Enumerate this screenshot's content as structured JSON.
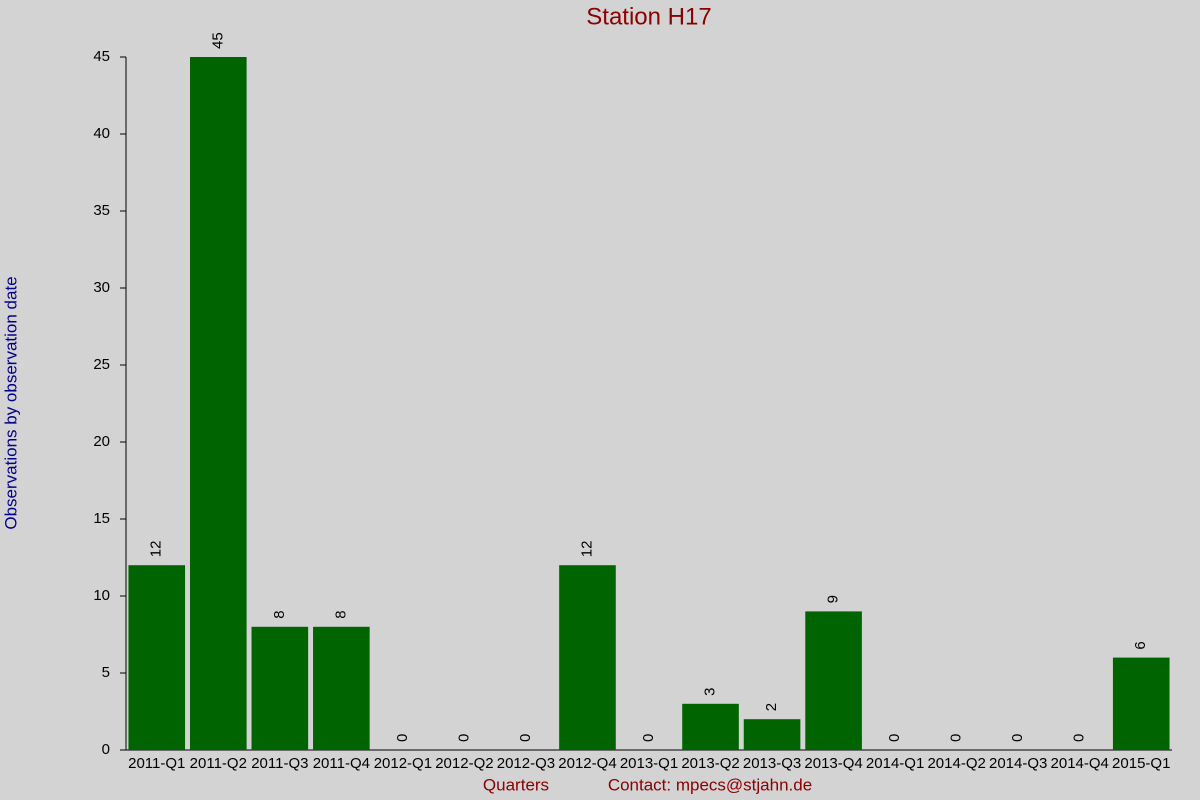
{
  "chart_data": {
    "type": "bar",
    "title": "Station H17",
    "x_label": "Quarters",
    "note": "Contact: mpecs@stjahn.de",
    "y_label": "Observations by observation date",
    "categories": [
      "2011-Q1",
      "2011-Q2",
      "2011-Q3",
      "2011-Q4",
      "2012-Q1",
      "2012-Q2",
      "2012-Q3",
      "2012-Q4",
      "2013-Q1",
      "2013-Q2",
      "2013-Q3",
      "2013-Q4",
      "2014-Q1",
      "2014-Q2",
      "2014-Q3",
      "2014-Q4",
      "2015-Q1"
    ],
    "values": [
      12,
      45,
      8,
      8,
      0,
      0,
      0,
      12,
      0,
      3,
      2,
      9,
      0,
      0,
      0,
      0,
      6
    ],
    "color": "#006400",
    "ylim": [
      0,
      45
    ],
    "yticks": [
      0,
      5,
      10,
      15,
      20,
      25,
      30,
      35,
      40,
      45
    ]
  }
}
